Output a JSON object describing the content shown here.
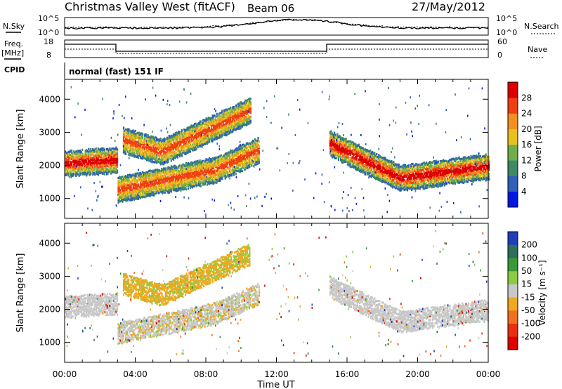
{
  "header": {
    "title": "Christmas Valley West (fitACF)",
    "beam": "Beam 06",
    "date": "27/May/2012"
  },
  "labels": {
    "nsky": "N.Sky",
    "nsearch": "N.Search",
    "freq": "Freq.",
    "freq_unit": "[MHz]",
    "nave": "Nave",
    "cpid": "CPID",
    "cpid_value": "normal (fast) 151 IF",
    "noise_tick_hi": "10^5",
    "noise_tick_lo": "10^0",
    "freq_tick_hi": "18",
    "freq_tick_lo": "8",
    "nave_tick_hi": "60",
    "nave_tick_lo": "0"
  },
  "colors": {
    "power_scale": [
      "#0018e0",
      "#2f5fb8",
      "#3f8a66",
      "#6fae4a",
      "#e8c020",
      "#f09020",
      "#ee4010",
      "#dd0000"
    ],
    "velocity_scale": [
      "#1f3fb8",
      "#2f6e5a",
      "#3a9a3a",
      "#8ccc44",
      "#c8c8c8",
      "#f0a820",
      "#f07020",
      "#e83010",
      "#dd0000"
    ]
  },
  "chart_data": [
    {
      "type": "heatmap",
      "panel": "power",
      "xlabel": "",
      "ylabel": "Slant Range [km]",
      "x_ticks": [
        "00:00",
        "04:00",
        "08:00",
        "12:00",
        "16:00",
        "20:00",
        "00:00"
      ],
      "y_ticks": [
        "1000",
        "2000",
        "3000",
        "4000"
      ],
      "ylim": [
        400,
        4600
      ],
      "colorbar": {
        "label": "Power [dB]",
        "ticks": [
          "4",
          "8",
          "12",
          "16",
          "20",
          "24",
          "28"
        ]
      },
      "bands": [
        {
          "x": [
            0,
            3.0
          ],
          "y": [
            2100,
            2200
          ],
          "level": 7
        },
        {
          "x": [
            3.0,
            8.5,
            11.0
          ],
          "y": [
            1300,
            1900,
            2500
          ],
          "level": 6
        },
        {
          "x": [
            3.3,
            5.5,
            8.5,
            10.5
          ],
          "y": [
            2800,
            2450,
            3200,
            3700
          ],
          "level": 6
        },
        {
          "x": [
            15.0,
            19.0,
            24.0
          ],
          "y": [
            2700,
            1650,
            2000
          ],
          "level": 7
        }
      ]
    },
    {
      "type": "heatmap",
      "panel": "velocity",
      "xlabel": "Time UT",
      "ylabel": "Slant Range [km]",
      "x_ticks": [
        "00:00",
        "04:00",
        "08:00",
        "12:00",
        "16:00",
        "20:00",
        "00:00"
      ],
      "y_ticks": [
        "1000",
        "2000",
        "3000",
        "4000"
      ],
      "ylim": [
        400,
        4600
      ],
      "colorbar": {
        "label": "Velocity [m s⁻¹]",
        "ticks": [
          "200",
          "100",
          "50",
          "15",
          "-15",
          "-50",
          "-100",
          "-200"
        ]
      }
    }
  ]
}
